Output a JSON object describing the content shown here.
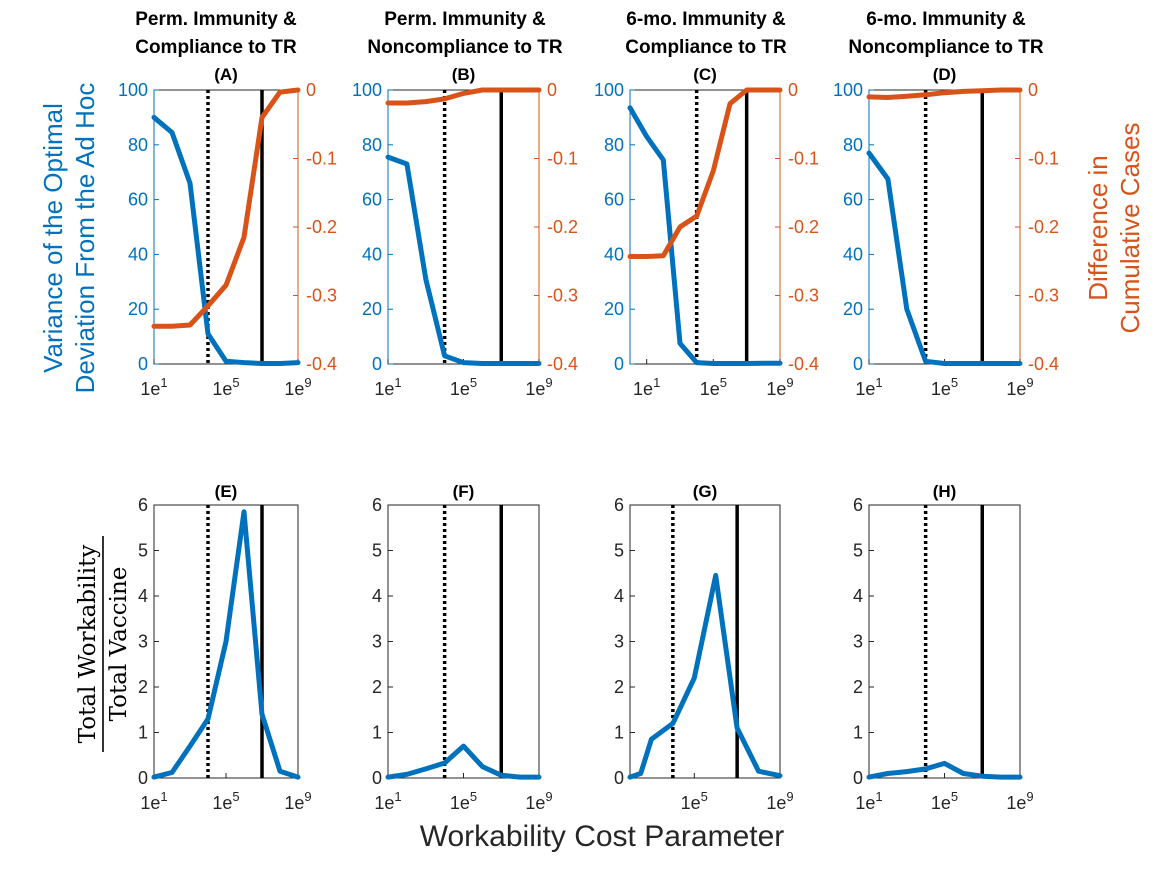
{
  "figure": {
    "xlabel": "Workability Cost Parameter",
    "left_ylabel_line1": "Variance of the Optimal",
    "left_ylabel_line2": "Deviation From the Ad Hoc",
    "right_ylabel_line1": "Difference in",
    "right_ylabel_line2": "Cumulative Cases",
    "bottom_ylabel_numerator": "Total Workability",
    "bottom_ylabel_denominator": "Total Vaccine",
    "colors": {
      "blue": "#0072bd",
      "orange": "#d95319",
      "black": "#000000"
    },
    "x_tick_base": "1e"
  },
  "chart_data": [
    {
      "type": "line",
      "label": "(A)",
      "title_line1": "Perm. Immunity &",
      "title_line2": "Compliance to TR",
      "xscale": "log10",
      "xlim_exp": [
        1,
        9
      ],
      "xtick_exps": [
        1,
        5,
        9
      ],
      "ylim": [
        0,
        100
      ],
      "yticks": [
        0,
        20,
        40,
        60,
        80,
        100
      ],
      "ylim_right": [
        -0.4,
        0
      ],
      "yticks_right": [
        -0.4,
        -0.3,
        -0.2,
        -0.1,
        0
      ],
      "vline_dotted_exp": 4.0,
      "vline_solid_exp": 7.0,
      "series": [
        {
          "name": "Variance of the Optimal Deviation",
          "axis": "left",
          "color": "#0072bd",
          "x_exp": [
            1,
            2,
            3,
            4,
            5,
            6,
            7,
            8,
            9
          ],
          "y": [
            90,
            84.5,
            66,
            11,
            1,
            0.5,
            0.2,
            0.2,
            0.5
          ]
        },
        {
          "name": "Difference in Cumulative Cases",
          "axis": "right",
          "color": "#d95319",
          "x_exp": [
            1,
            2,
            3,
            4,
            5,
            6,
            7,
            8,
            9
          ],
          "y": [
            -0.345,
            -0.345,
            -0.343,
            -0.315,
            -0.285,
            -0.215,
            -0.04,
            -0.003,
            0
          ]
        }
      ]
    },
    {
      "type": "line",
      "label": "(B)",
      "title_line1": "Perm. Immunity &",
      "title_line2": "Noncompliance to TR",
      "xscale": "log10",
      "xlim_exp": [
        1,
        9
      ],
      "xtick_exps": [
        1,
        5,
        9
      ],
      "ylim": [
        0,
        100
      ],
      "yticks": [
        0,
        20,
        40,
        60,
        80,
        100
      ],
      "ylim_right": [
        -0.4,
        0
      ],
      "yticks_right": [
        -0.4,
        -0.3,
        -0.2,
        -0.1,
        0
      ],
      "vline_dotted_exp": 4.0,
      "vline_solid_exp": 7.0,
      "series": [
        {
          "name": "Variance of the Optimal Deviation",
          "axis": "left",
          "color": "#0072bd",
          "x_exp": [
            1,
            2,
            3,
            4,
            5,
            6,
            7,
            8,
            9
          ],
          "y": [
            75.5,
            73,
            31,
            3,
            0.5,
            0.2,
            0.2,
            0.2,
            0.2
          ]
        },
        {
          "name": "Difference in Cumulative Cases",
          "axis": "right",
          "color": "#d95319",
          "x_exp": [
            1,
            2,
            3,
            4,
            5,
            6,
            7,
            8,
            9
          ],
          "y": [
            -0.019,
            -0.019,
            -0.017,
            -0.013,
            -0.005,
            0,
            0,
            0,
            0
          ]
        }
      ]
    },
    {
      "type": "line",
      "label": "(C)",
      "title_line1": "6-mo. Immunity &",
      "title_line2": "Compliance to TR",
      "xscale": "log10",
      "xlim_exp": [
        0,
        9
      ],
      "xtick_exps": [
        1,
        5,
        9
      ],
      "ylim": [
        0,
        100
      ],
      "yticks": [
        0,
        20,
        40,
        60,
        80,
        100
      ],
      "ylim_right": [
        -0.4,
        0
      ],
      "yticks_right": [
        -0.4,
        -0.3,
        -0.2,
        -0.1,
        0
      ],
      "vline_dotted_exp": 4.0,
      "vline_solid_exp": 7.0,
      "series": [
        {
          "name": "Variance of the Optimal Deviation",
          "axis": "left",
          "color": "#0072bd",
          "x_exp": [
            0,
            1,
            2,
            3,
            4,
            5,
            6,
            7,
            8,
            9
          ],
          "y": [
            93.5,
            83,
            74.5,
            7.5,
            0.5,
            0.2,
            0.2,
            0.2,
            0.3,
            0.3
          ]
        },
        {
          "name": "Difference in Cumulative Cases",
          "axis": "right",
          "color": "#d95319",
          "x_exp": [
            0,
            1,
            2,
            3,
            4,
            5,
            6,
            7,
            8,
            9
          ],
          "y": [
            -0.243,
            -0.243,
            -0.242,
            -0.2,
            -0.184,
            -0.118,
            -0.02,
            0,
            0,
            0
          ]
        }
      ]
    },
    {
      "type": "line",
      "label": "(D)",
      "title_line1": "6-mo. Immunity &",
      "title_line2": "Noncompliance to TR",
      "xscale": "log10",
      "xlim_exp": [
        1,
        9
      ],
      "xtick_exps": [
        1,
        5,
        9
      ],
      "ylim": [
        0,
        100
      ],
      "yticks": [
        0,
        20,
        40,
        60,
        80,
        100
      ],
      "ylim_right": [
        -0.4,
        0
      ],
      "yticks_right": [
        -0.4,
        -0.3,
        -0.2,
        -0.1,
        0
      ],
      "vline_dotted_exp": 4.0,
      "vline_solid_exp": 7.0,
      "series": [
        {
          "name": "Variance of the Optimal Deviation",
          "axis": "left",
          "color": "#0072bd",
          "x_exp": [
            1,
            2,
            3,
            4,
            5,
            6,
            7,
            8,
            9
          ],
          "y": [
            77,
            67.5,
            20,
            1,
            0.2,
            0.2,
            0.2,
            0.2,
            0.2
          ]
        },
        {
          "name": "Difference in Cumulative Cases",
          "axis": "right",
          "color": "#d95319",
          "x_exp": [
            1,
            2,
            3,
            4,
            5,
            6,
            7,
            8,
            9
          ],
          "y": [
            -0.01,
            -0.011,
            -0.009,
            -0.007,
            -0.004,
            -0.002,
            -0.001,
            0,
            0
          ]
        }
      ]
    },
    {
      "type": "line",
      "label": "(E)",
      "xscale": "log10",
      "xlim_exp": [
        1,
        9
      ],
      "xtick_exps": [
        1,
        5,
        9
      ],
      "ylim": [
        0,
        6
      ],
      "yticks": [
        0,
        1,
        2,
        3,
        4,
        5,
        6
      ],
      "vline_dotted_exp": 4.0,
      "vline_solid_exp": 7.0,
      "series": [
        {
          "name": "Total Workability / Total Vaccine",
          "axis": "left",
          "color": "#0072bd",
          "x_exp": [
            1,
            2,
            3,
            4,
            5,
            6,
            7,
            8,
            9
          ],
          "y": [
            0.02,
            0.12,
            0.7,
            1.3,
            3,
            5.85,
            1.4,
            0.15,
            0.02
          ]
        }
      ]
    },
    {
      "type": "line",
      "label": "(F)",
      "xscale": "log10",
      "xlim_exp": [
        1,
        9
      ],
      "xtick_exps": [
        1,
        5,
        9
      ],
      "ylim": [
        0,
        6
      ],
      "yticks": [
        0,
        1,
        2,
        3,
        4,
        5,
        6
      ],
      "vline_dotted_exp": 4.0,
      "vline_solid_exp": 7.0,
      "series": [
        {
          "name": "Total Workability / Total Vaccine",
          "axis": "left",
          "color": "#0072bd",
          "x_exp": [
            1,
            2,
            3,
            4,
            5,
            6,
            7,
            8,
            9
          ],
          "y": [
            0.02,
            0.08,
            0.2,
            0.33,
            0.7,
            0.25,
            0.06,
            0.02,
            0.02
          ]
        }
      ]
    },
    {
      "type": "line",
      "label": "(G)",
      "xscale": "log10",
      "xlim_exp": [
        2,
        9
      ],
      "xtick_exps": [
        5,
        9
      ],
      "ylim": [
        0,
        6
      ],
      "yticks": [
        0,
        1,
        2,
        3,
        4,
        5,
        6
      ],
      "vline_dotted_exp": 4.0,
      "vline_solid_exp": 7.0,
      "series": [
        {
          "name": "Total Workability / Total Vaccine",
          "axis": "left",
          "color": "#0072bd",
          "x_exp": [
            2,
            2.5,
            3,
            4,
            5,
            6,
            7,
            8,
            9
          ],
          "y": [
            0.02,
            0.1,
            0.85,
            1.2,
            2.2,
            4.45,
            1.1,
            0.15,
            0.05
          ]
        }
      ]
    },
    {
      "type": "line",
      "label": "(H)",
      "xscale": "log10",
      "xlim_exp": [
        1,
        9
      ],
      "xtick_exps": [
        1,
        5,
        9
      ],
      "ylim": [
        0,
        6
      ],
      "yticks": [
        0,
        1,
        2,
        3,
        4,
        5,
        6
      ],
      "vline_dotted_exp": 4.0,
      "vline_solid_exp": 7.0,
      "series": [
        {
          "name": "Total Workability / Total Vaccine",
          "axis": "left",
          "color": "#0072bd",
          "x_exp": [
            1,
            2,
            3,
            4,
            5,
            6,
            7,
            8,
            9
          ],
          "y": [
            0.02,
            0.1,
            0.14,
            0.2,
            0.32,
            0.1,
            0.04,
            0.02,
            0.02
          ]
        }
      ]
    }
  ]
}
